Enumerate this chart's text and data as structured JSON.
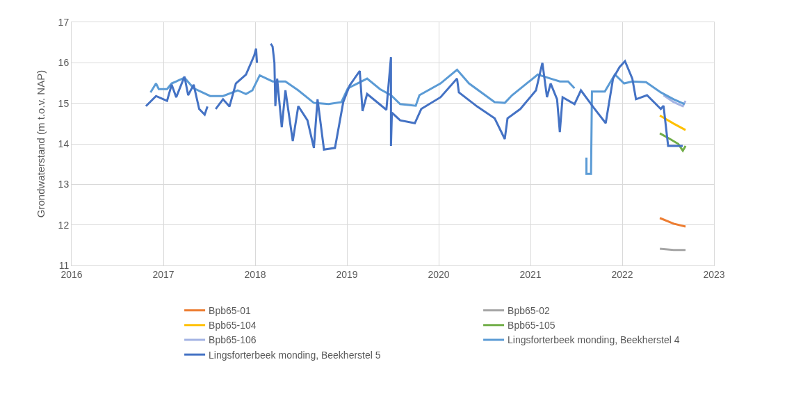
{
  "chart_data": {
    "type": "line",
    "ylabel": "Grondwaterstand (m t.o.v. NAP)",
    "xlim": [
      2016,
      2023
    ],
    "xticks": [
      2016,
      2017,
      2018,
      2019,
      2020,
      2021,
      2022,
      2023
    ],
    "ylim": [
      11,
      17
    ],
    "yticks": [
      11,
      12,
      13,
      14,
      15,
      16,
      17
    ],
    "grid": true,
    "legend": "bottom",
    "line_style": "solid",
    "marker": "none",
    "series": [
      {
        "name": "Bpb65-01",
        "color": "#ed7d31",
        "x": [
          2022.41,
          2022.56,
          2022.69
        ],
        "values": [
          12.17,
          12.03,
          11.96
        ]
      },
      {
        "name": "Bpb65-02",
        "color": "#a5a5a5",
        "x": [
          2022.41,
          2022.56,
          2022.69
        ],
        "values": [
          11.41,
          11.38,
          11.38
        ]
      },
      {
        "name": "Bpb65-104",
        "color": "#ffc000",
        "x": [
          2022.41,
          2022.56,
          2022.69
        ],
        "values": [
          14.7,
          14.5,
          14.34
        ]
      },
      {
        "name": "Bpb65-105",
        "color": "#70ad47",
        "x": [
          2022.41,
          2022.52,
          2022.61,
          2022.66,
          2022.69
        ],
        "values": [
          14.26,
          14.12,
          14.0,
          13.83,
          13.95
        ]
      },
      {
        "name": "Bpb65-106",
        "color": "#a3b3e3",
        "x": [
          2022.45,
          2022.56,
          2022.66,
          2022.69
        ],
        "values": [
          15.2,
          15.03,
          14.93,
          15.06
        ]
      },
      {
        "name": "Lingsforterbeek monding, Beekherstel 4",
        "color": "#5b9bd5",
        "x": [
          2016.86,
          2016.92,
          2016.95,
          2017.04,
          2017.09,
          2017.23,
          2017.33,
          2017.51,
          2017.65,
          2017.81,
          2017.9,
          2017.97,
          2018.05,
          2018.19,
          2018.33,
          2018.47,
          2018.64,
          2018.8,
          2018.94,
          2019.01,
          2019.22,
          2019.36,
          2019.48,
          2019.58,
          2019.75,
          2019.79,
          2020.02,
          2020.2,
          2020.33,
          2020.61,
          2020.72,
          2020.8,
          2021.08,
          2021.22,
          2021.32,
          2021.41,
          2021.48,
          2021.55,
          2021.61,
          2021.61,
          2021.66,
          2021.67,
          2021.81,
          2021.92,
          2022.02,
          2022.11,
          2022.26,
          2022.42,
          2022.56,
          2022.68
        ],
        "values": [
          15.27,
          15.49,
          15.35,
          15.35,
          15.49,
          15.63,
          15.37,
          15.18,
          15.18,
          15.32,
          15.23,
          15.32,
          15.69,
          15.54,
          15.54,
          15.32,
          15.01,
          14.98,
          15.03,
          15.37,
          15.61,
          15.35,
          15.2,
          14.98,
          14.94,
          15.2,
          15.49,
          15.83,
          15.49,
          15.03,
          15.01,
          15.2,
          15.71,
          15.61,
          15.54,
          15.54,
          15.37,
          null,
          13.66,
          13.26,
          13.26,
          15.29,
          15.29,
          15.71,
          15.49,
          15.54,
          15.52,
          15.27,
          15.1,
          14.98
        ]
      },
      {
        "name": "Lingsforterbeek monding, Beekherstel 5",
        "color": "#4472c4",
        "x": [
          2016.81,
          2016.92,
          2017.04,
          2017.09,
          2017.14,
          2017.23,
          2017.27,
          2017.33,
          2017.39,
          2017.45,
          2017.48,
          2017.52,
          2017.57,
          2017.65,
          2017.72,
          2017.79,
          2017.9,
          2017.99,
          2018.01,
          2018.02,
          2018.1,
          2018.17,
          2018.19,
          2018.21,
          2018.22,
          2018.24,
          2018.29,
          2018.33,
          2018.41,
          2018.47,
          2018.57,
          2018.64,
          2018.68,
          2018.75,
          2018.87,
          2018.96,
          2019.03,
          2019.14,
          2019.17,
          2019.22,
          2019.43,
          2019.48,
          2019.48,
          2019.49,
          2019.58,
          2019.74,
          2019.81,
          2020.02,
          2020.2,
          2020.22,
          2020.42,
          2020.61,
          2020.72,
          2020.75,
          2020.89,
          2021.06,
          2021.13,
          2021.18,
          2021.22,
          2021.29,
          2021.32,
          2021.35,
          2021.48,
          2021.55,
          2021.69,
          2021.82,
          2021.9,
          2021.97,
          2022.03,
          2022.11,
          2022.15,
          2022.27,
          2022.42,
          2022.45,
          2022.5,
          2022.66
        ],
        "values": [
          14.93,
          15.18,
          15.06,
          15.46,
          15.15,
          15.66,
          15.2,
          15.46,
          14.86,
          14.72,
          14.92,
          null,
          14.86,
          15.1,
          14.92,
          15.49,
          15.71,
          16.18,
          16.35,
          16.0,
          null,
          16.47,
          16.4,
          16.0,
          14.93,
          15.61,
          14.41,
          15.32,
          14.07,
          14.93,
          14.58,
          13.9,
          15.1,
          13.86,
          13.9,
          15.03,
          15.44,
          15.8,
          14.81,
          15.23,
          14.84,
          16.14,
          13.95,
          14.77,
          14.58,
          14.51,
          14.86,
          15.15,
          15.61,
          15.27,
          14.92,
          14.63,
          14.12,
          14.63,
          14.86,
          15.32,
          16.0,
          15.15,
          15.49,
          15.1,
          14.29,
          15.15,
          14.98,
          15.32,
          14.89,
          14.51,
          15.61,
          15.89,
          16.04,
          15.61,
          15.1,
          15.2,
          14.86,
          14.94,
          13.95,
          13.95
        ]
      }
    ]
  }
}
